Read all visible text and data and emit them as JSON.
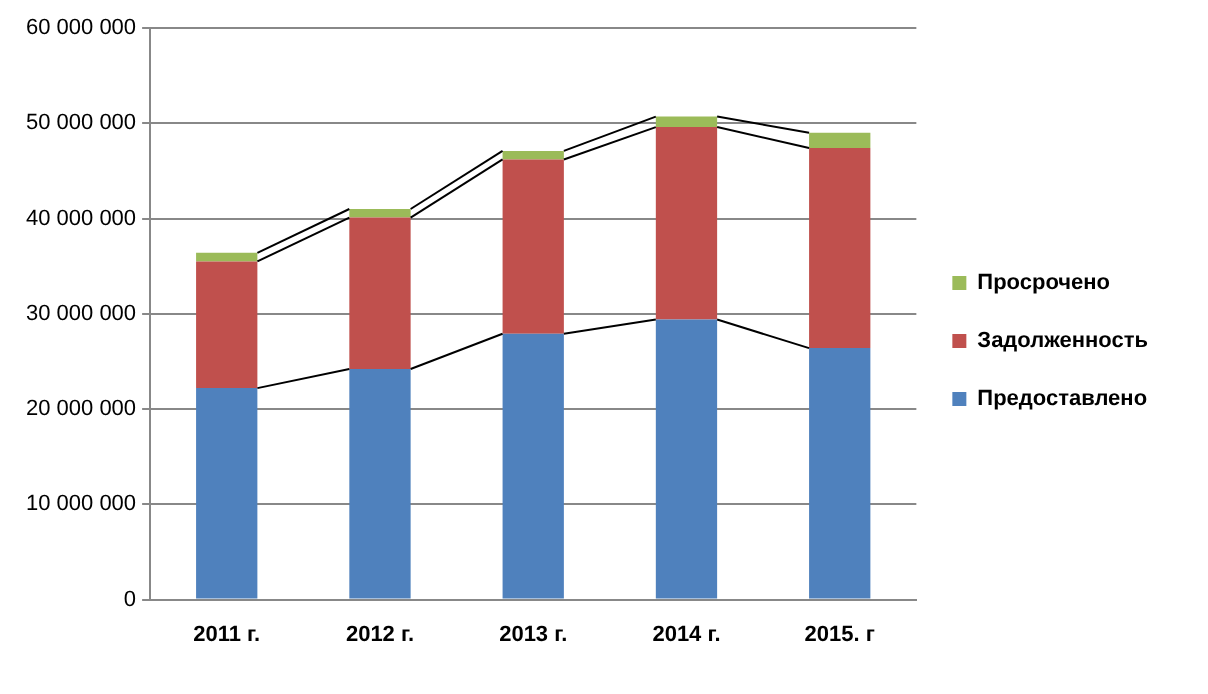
{
  "chart_data": {
    "type": "bar",
    "stacked": true,
    "categories": [
      "2011 г.",
      "2012 г.",
      "2013 г.",
      "2014 г.",
      "2015. г"
    ],
    "series": [
      {
        "name": "Предоставлено",
        "color": "#4f81bd",
        "values": [
          22200000,
          24200000,
          27900000,
          29400000,
          26400000
        ]
      },
      {
        "name": "Задолженность",
        "color": "#c0504d",
        "values": [
          13300000,
          15900000,
          18300000,
          20200000,
          21000000
        ]
      },
      {
        "name": "Просрочено",
        "color": "#9bbb59",
        "values": [
          900000,
          900000,
          900000,
          1100000,
          1600000
        ]
      }
    ],
    "ylim": [
      0,
      60000000
    ],
    "yticks": [
      {
        "value": 0,
        "label": "0"
      },
      {
        "value": 10000000,
        "label": "10 000 000"
      },
      {
        "value": 20000000,
        "label": "20 000 000"
      },
      {
        "value": 30000000,
        "label": "30 000 000"
      },
      {
        "value": 40000000,
        "label": "40 000 000"
      },
      {
        "value": 50000000,
        "label": "50 000 000"
      },
      {
        "value": 60000000,
        "label": "60 000 000"
      }
    ],
    "grid": "y",
    "legend": "right"
  }
}
